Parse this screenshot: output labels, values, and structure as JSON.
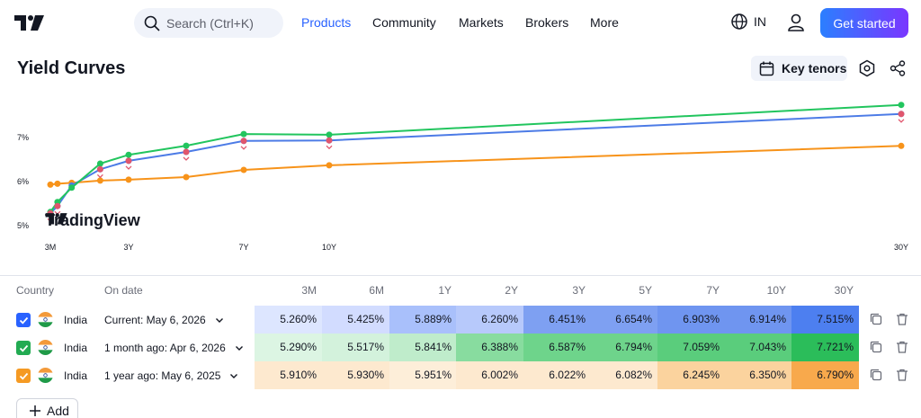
{
  "header": {
    "search_placeholder": "Search (Ctrl+K)",
    "nav": [
      "Products",
      "Community",
      "Markets",
      "Brokers",
      "More"
    ],
    "language": "IN",
    "cta": "Get started"
  },
  "page": {
    "title": "Yield Curves",
    "key_tenors_label": "Key tenors",
    "watermark": "TradingView"
  },
  "chart_data": {
    "type": "line",
    "x_ticks": [
      "3M",
      "3Y",
      "7Y",
      "10Y",
      "30Y"
    ],
    "y_ticks": [
      "5%",
      "6%",
      "7%"
    ],
    "tenors_years": [
      0.25,
      0.5,
      1,
      2,
      3,
      5,
      7,
      10,
      30
    ],
    "series": [
      {
        "color": "#4c7be6",
        "values": [
          5.26,
          5.425,
          5.889,
          6.26,
          6.451,
          6.654,
          6.903,
          6.914,
          7.515
        ]
      },
      {
        "color": "#22c55e",
        "values": [
          5.29,
          5.517,
          5.841,
          6.388,
          6.587,
          6.794,
          7.059,
          7.043,
          7.721
        ]
      },
      {
        "color": "#f7931a",
        "values": [
          5.91,
          5.93,
          5.951,
          6.002,
          6.022,
          6.082,
          6.245,
          6.35,
          6.79
        ]
      }
    ]
  },
  "table": {
    "headers": {
      "country": "Country",
      "date": "On date",
      "tenors": [
        "3M",
        "6M",
        "1Y",
        "2Y",
        "3Y",
        "5Y",
        "7Y",
        "10Y",
        "30Y"
      ]
    },
    "rows": [
      {
        "country": "India",
        "date": "Current: May 6, 2026",
        "checkbox_color": "#2962ff",
        "values": [
          "5.260%",
          "5.425%",
          "5.889%",
          "6.260%",
          "6.451%",
          "6.654%",
          "6.903%",
          "6.914%",
          "7.515%"
        ],
        "cell_colors": [
          "#dde6ff",
          "#d2dcff",
          "#a9c0fb",
          "#b7c9fb",
          "#7ea0f2",
          "#7ea0f2",
          "#6f95f0",
          "#6f95f0",
          "#4d7ff0"
        ]
      },
      {
        "country": "India",
        "date": "1 month ago: Apr 6, 2026",
        "checkbox_color": "#22ab52",
        "values": [
          "5.290%",
          "5.517%",
          "5.841%",
          "6.388%",
          "6.587%",
          "6.794%",
          "7.059%",
          "7.043%",
          "7.721%"
        ],
        "cell_colors": [
          "#dcf5e3",
          "#d3f2dc",
          "#bfeccb",
          "#88dc9f",
          "#6ed48b",
          "#6ed48b",
          "#5acd7c",
          "#5acd7c",
          "#2bbd5a"
        ]
      },
      {
        "country": "India",
        "date": "1 year ago: May 6, 2025",
        "checkbox_color": "#f59a23",
        "values": [
          "5.910%",
          "5.930%",
          "5.951%",
          "6.002%",
          "6.022%",
          "6.082%",
          "6.245%",
          "6.350%",
          "6.790%"
        ],
        "cell_colors": [
          "#fde9cf",
          "#fde9cf",
          "#fdeed9",
          "#fde9cf",
          "#fde9cf",
          "#fde9cf",
          "#fbd39e",
          "#fbd39e",
          "#f8a94c"
        ]
      }
    ],
    "add_label": "Add"
  }
}
